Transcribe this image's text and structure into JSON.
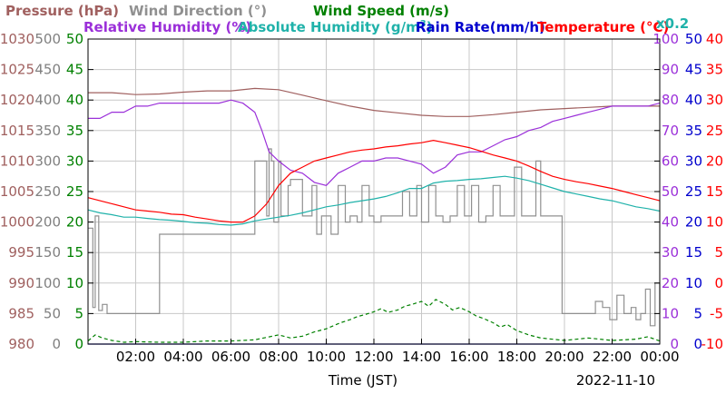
{
  "chart_data": {
    "type": "line",
    "date": "2022-11-10",
    "xlabel": "Time (JST)",
    "x_ticks": [
      "02:00",
      "04:00",
      "06:00",
      "08:00",
      "10:00",
      "12:00",
      "14:00",
      "16:00",
      "18:00",
      "20:00",
      "22:00",
      "00:00"
    ],
    "x_range": [
      "00:00",
      "24:00"
    ],
    "grid": true,
    "legend": {
      "row1": [
        {
          "label": "Pressure (hPa)",
          "color": "#a0605f"
        },
        {
          "label": "Wind Direction (°)",
          "color": "#909090"
        },
        {
          "label": "Wind Speed (m/s)",
          "color": "#008000"
        }
      ],
      "row2": [
        {
          "label": "Relative Humidity (%)",
          "color": "#9b30d9"
        },
        {
          "label": "Absolute Humidity (g/m",
          "sup": "3",
          "close": ")",
          "color": "#20b2aa"
        },
        {
          "label": "Rain Rate(mm/h)",
          "color": "#0000cd"
        },
        {
          "label": "Temperature (°C)",
          "color": "#ff0000"
        }
      ],
      "scale_note": "x0.2"
    },
    "axes": [
      {
        "name": "Pressure (hPa)",
        "color": "#a0605f",
        "range": [
          980,
          1030
        ],
        "ticks": [
          "1030",
          "1025",
          "1020",
          "1015",
          "1010",
          "1005",
          "1000",
          "995",
          "990",
          "985",
          "980"
        ]
      },
      {
        "name": "Wind Direction (°)",
        "color": "#808080",
        "range": [
          0,
          500
        ],
        "ticks": [
          "500",
          "450",
          "400",
          "350",
          "300",
          "250",
          "200",
          "150",
          "100",
          "50",
          "0"
        ]
      },
      {
        "name": "Wind Speed (m/s)",
        "color": "#008000",
        "range": [
          0,
          50
        ],
        "ticks": [
          "50",
          "45",
          "40",
          "35",
          "30",
          "25",
          "20",
          "15",
          "10",
          "5",
          "0"
        ]
      },
      {
        "name": "Relative Humidity (%)",
        "color": "#9b30d9",
        "range": [
          0,
          100
        ],
        "ticks": [
          "100",
          "90",
          "80",
          "70",
          "60",
          "50",
          "40",
          "30",
          "20",
          "10",
          "0"
        ]
      },
      {
        "name": "Rain Rate(mm/h)",
        "color": "#0000cd",
        "range": [
          0,
          50
        ],
        "ticks": [
          "50",
          "45",
          "40",
          "35",
          "30",
          "25",
          "20",
          "15",
          "10",
          "5",
          "0"
        ]
      },
      {
        "name": "Temperature (°C)",
        "color": "#ff0000",
        "range": [
          -10,
          40
        ],
        "ticks": [
          "40",
          "35",
          "30",
          "25",
          "20",
          "15",
          "10",
          "5",
          "0",
          "-5",
          "-10"
        ]
      }
    ],
    "series": [
      {
        "name": "Pressure (hPa)",
        "color": "#a0605f",
        "axis": 0,
        "style": "solid",
        "x": [
          0,
          1,
          2,
          3,
          4,
          5,
          6,
          7,
          8,
          9,
          10,
          11,
          12,
          13,
          14,
          15,
          16,
          17,
          18,
          19,
          20,
          21,
          22,
          23,
          24
        ],
        "y": [
          1021.2,
          1021.2,
          1020.9,
          1021.0,
          1021.3,
          1021.5,
          1021.5,
          1021.9,
          1021.7,
          1020.8,
          1019.9,
          1019.0,
          1018.3,
          1017.9,
          1017.5,
          1017.3,
          1017.3,
          1017.6,
          1018.0,
          1018.4,
          1018.6,
          1018.8,
          1019.0,
          1019.0,
          1019.0
        ]
      },
      {
        "name": "Wind Direction (°)",
        "color": "#909090",
        "axis": 1,
        "style": "step",
        "x": [
          0,
          0.2,
          0.3,
          0.45,
          0.6,
          0.8,
          1,
          1.5,
          2,
          2.5,
          2.9,
          3,
          4,
          5,
          6,
          6.9,
          7,
          7.3,
          7.5,
          7.6,
          7.7,
          7.8,
          8,
          8.1,
          8.4,
          8.5,
          9,
          9.4,
          9.6,
          9.8,
          10,
          10.2,
          10.5,
          10.8,
          11,
          11.3,
          11.5,
          11.8,
          12,
          12.3,
          12.6,
          12.9,
          13.2,
          13.5,
          13.8,
          14,
          14.3,
          14.6,
          14.9,
          15.2,
          15.5,
          15.8,
          16.1,
          16.4,
          16.7,
          17,
          17.3,
          17.6,
          17.9,
          18.2,
          18.5,
          18.8,
          19,
          19.3,
          19.6,
          19.9,
          20.2,
          20.5,
          20.8,
          21,
          21.3,
          21.6,
          21.9,
          22.2,
          22.5,
          22.8,
          23,
          23.2,
          23.4,
          23.6,
          23.8,
          24
        ],
        "y": [
          190,
          60,
          210,
          55,
          65,
          50,
          50,
          50,
          50,
          50,
          50,
          180,
          180,
          180,
          180,
          180,
          300,
          300,
          210,
          320,
          300,
          200,
          300,
          210,
          260,
          270,
          210,
          260,
          180,
          210,
          210,
          180,
          260,
          200,
          210,
          200,
          260,
          210,
          200,
          210,
          210,
          210,
          250,
          210,
          260,
          200,
          260,
          210,
          200,
          210,
          260,
          210,
          260,
          200,
          210,
          260,
          210,
          210,
          290,
          210,
          210,
          300,
          210,
          210,
          210,
          50,
          50,
          50,
          50,
          50,
          70,
          60,
          40,
          80,
          50,
          60,
          40,
          50,
          90,
          30,
          100,
          50
        ]
      },
      {
        "name": "Wind Speed (m/s)",
        "color": "#008000",
        "axis": 2,
        "style": "dashed",
        "x": [
          0,
          0.3,
          0.6,
          1,
          1.5,
          2,
          3,
          4,
          5,
          6,
          7,
          8,
          8.5,
          9,
          9.5,
          10,
          10.3,
          10.6,
          11,
          11.3,
          11.6,
          12,
          12.3,
          12.6,
          13,
          13.3,
          13.6,
          14,
          14.3,
          14.6,
          15,
          15.3,
          15.6,
          16,
          16.3,
          16.6,
          17,
          17.3,
          17.6,
          18,
          18.5,
          19,
          20,
          21,
          22,
          23,
          23.5,
          24
        ],
        "y": [
          0.5,
          1.5,
          1.0,
          0.6,
          0.3,
          0.4,
          0.3,
          0.3,
          0.5,
          0.5,
          0.7,
          1.5,
          1.0,
          1.3,
          2.0,
          2.5,
          3.0,
          3.5,
          4.0,
          4.5,
          4.8,
          5.3,
          5.8,
          5.2,
          5.6,
          6.2,
          6.5,
          7.0,
          6.2,
          7.3,
          6.5,
          5.6,
          6.0,
          5.3,
          4.6,
          4.2,
          3.5,
          2.8,
          3.2,
          2.2,
          1.5,
          1.0,
          0.6,
          1.0,
          0.6,
          0.8,
          1.2,
          0.5
        ]
      },
      {
        "name": "Relative Humidity (%)",
        "color": "#9b30d9",
        "axis": 3,
        "style": "solid",
        "x": [
          0,
          0.5,
          1,
          1.5,
          2,
          2.5,
          3,
          3.5,
          4,
          4.5,
          5,
          5.5,
          6,
          6.5,
          7,
          7.3,
          7.6,
          8,
          8.5,
          9,
          9.5,
          10,
          10.5,
          11,
          11.5,
          12,
          12.5,
          13,
          13.5,
          14,
          14.5,
          15,
          15.5,
          16,
          16.5,
          17,
          17.5,
          18,
          18.5,
          19,
          19.5,
          20,
          20.5,
          21,
          21.5,
          22,
          22.5,
          23,
          23.5,
          24
        ],
        "y": [
          74,
          74,
          76,
          76,
          78,
          78,
          79,
          79,
          79,
          79,
          79,
          79,
          80,
          79,
          76,
          70,
          63,
          60,
          57,
          56,
          53,
          52,
          56,
          58,
          60,
          60,
          61,
          61,
          60,
          59,
          56,
          58,
          62,
          63,
          63,
          65,
          67,
          68,
          70,
          71,
          73,
          74,
          75,
          76,
          77,
          78,
          78,
          78,
          78,
          79
        ]
      },
      {
        "name": "Absolute Humidity (g/m3)",
        "color": "#20b2aa",
        "axis": 2,
        "style": "solid",
        "x": [
          0,
          0.5,
          1,
          1.5,
          2,
          2.5,
          3,
          3.5,
          4,
          4.5,
          5,
          5.5,
          6,
          6.5,
          7,
          7.5,
          8,
          8.5,
          9,
          9.5,
          10,
          10.5,
          11,
          11.5,
          12,
          12.5,
          13,
          13.5,
          14,
          14.5,
          15,
          15.5,
          16,
          16.5,
          17,
          17.5,
          18,
          18.5,
          19,
          19.5,
          20,
          20.5,
          21,
          21.5,
          22,
          22.5,
          23,
          23.5,
          24
        ],
        "y": [
          22,
          21.5,
          21.2,
          20.8,
          20.8,
          20.6,
          20.4,
          20.3,
          20.1,
          19.9,
          19.8,
          19.6,
          19.5,
          19.7,
          20.2,
          20.5,
          20.8,
          21.1,
          21.5,
          22.0,
          22.5,
          22.8,
          23.2,
          23.5,
          23.8,
          24.2,
          24.8,
          25.5,
          25.5,
          26.4,
          26.7,
          26.8,
          27.0,
          27.1,
          27.3,
          27.5,
          27.2,
          26.8,
          26.2,
          25.6,
          25.0,
          24.6,
          24.2,
          23.8,
          23.5,
          23.0,
          22.5,
          22.2,
          21.8
        ]
      },
      {
        "name": "Rain Rate(mm/h)",
        "color": "#0000cd",
        "axis": 4,
        "style": "solid",
        "x": [
          0,
          24
        ],
        "y": [
          0,
          0
        ]
      },
      {
        "name": "Temperature (°C)",
        "color": "#ff0000",
        "axis": 5,
        "style": "solid",
        "x": [
          0,
          0.5,
          1,
          1.5,
          2,
          2.5,
          3,
          3.5,
          4,
          4.5,
          5,
          5.5,
          6,
          6.5,
          7,
          7.5,
          8,
          8.5,
          9,
          9.5,
          10,
          10.5,
          11,
          11.5,
          12,
          12.5,
          13,
          13.5,
          14,
          14.5,
          15,
          15.5,
          16,
          16.5,
          17,
          17.5,
          18,
          18.5,
          19,
          19.5,
          20,
          20.5,
          21,
          21.5,
          22,
          22.5,
          23,
          23.5,
          24
        ],
        "y": [
          14,
          13.5,
          13.0,
          12.5,
          12.0,
          11.8,
          11.6,
          11.3,
          11.2,
          10.8,
          10.5,
          10.2,
          10.0,
          10.0,
          11.0,
          13.0,
          16.0,
          18.0,
          19.0,
          20.0,
          20.5,
          21.0,
          21.5,
          21.8,
          22.0,
          22.3,
          22.5,
          22.8,
          23.0,
          23.4,
          23.0,
          22.6,
          22.2,
          21.6,
          21.0,
          20.5,
          20.0,
          19.2,
          18.3,
          17.5,
          17.0,
          16.6,
          16.3,
          15.9,
          15.5,
          15.0,
          14.5,
          14.0,
          13.5
        ]
      }
    ]
  }
}
